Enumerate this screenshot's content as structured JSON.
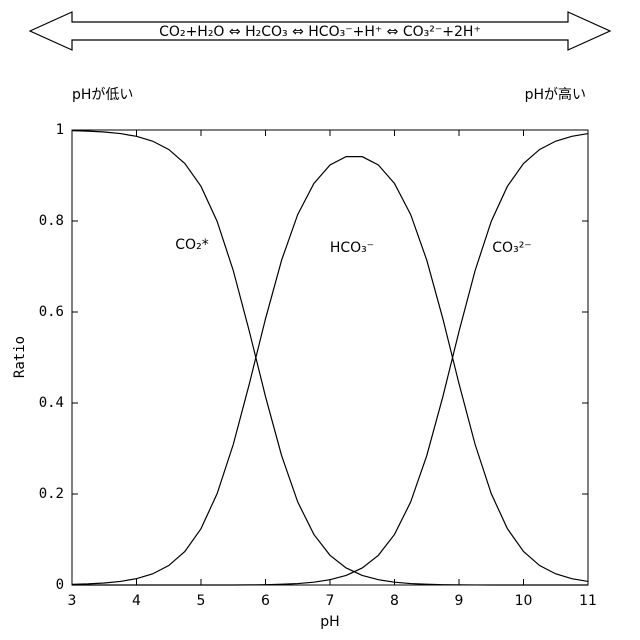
{
  "chart_data": {
    "type": "line",
    "equation": "CO₂+H₂O ⇔ H₂CO₃ ⇔ HCO₃⁻+H⁺ ⇔ CO₃²⁻+2H⁺",
    "left_note": "pHが低い",
    "right_note": "pHが高い",
    "xlabel": "pH",
    "ylabel": "Ratio",
    "x": [
      3,
      3.25,
      3.5,
      3.75,
      4,
      4.25,
      4.5,
      4.75,
      5,
      5.25,
      5.5,
      5.75,
      6,
      6.25,
      6.5,
      6.75,
      7,
      7.25,
      7.5,
      7.75,
      8,
      8.25,
      8.5,
      8.75,
      9,
      9.25,
      9.5,
      9.75,
      10,
      10.25,
      10.5,
      10.75,
      11
    ],
    "series": [
      {
        "name": "CO₂*",
        "color": "#000000",
        "values": [
          0.9986,
          0.9975,
          0.9956,
          0.9921,
          0.9861,
          0.9755,
          0.9572,
          0.9264,
          0.8762,
          0.7992,
          0.6912,
          0.5571,
          0.4142,
          0.2843,
          0.1823,
          0.1111,
          0.0653,
          0.0375,
          0.0211,
          0.0116,
          0.0062,
          0.0032,
          0.0016,
          0.0007,
          0.0003,
          0.0001,
          0,
          0,
          0,
          0,
          0,
          0,
          0
        ]
      },
      {
        "name": "HCO₃⁻",
        "color": "#000000",
        "values": [
          0.0014,
          0.0025,
          0.0044,
          0.0079,
          0.0139,
          0.0245,
          0.0428,
          0.0736,
          0.1238,
          0.2008,
          0.3088,
          0.4425,
          0.5851,
          0.7141,
          0.8144,
          0.8826,
          0.923,
          0.9415,
          0.9414,
          0.9231,
          0.8826,
          0.8144,
          0.7141,
          0.5851,
          0.4425,
          0.3088,
          0.2008,
          0.1238,
          0.0736,
          0.0428,
          0.0245,
          0.0139,
          0.0079
        ]
      },
      {
        "name": "CO₃²⁻",
        "color": "#000000",
        "values": [
          0,
          0,
          0,
          0,
          0,
          0,
          0,
          0,
          0,
          0,
          0,
          0.0003,
          0.0007,
          0.0016,
          0.0032,
          0.0062,
          0.0116,
          0.0211,
          0.0375,
          0.0653,
          0.1111,
          0.1823,
          0.2843,
          0.4142,
          0.5571,
          0.6912,
          0.7992,
          0.8762,
          0.9264,
          0.9572,
          0.9755,
          0.9861,
          0.9921
        ]
      }
    ],
    "xlim": [
      3,
      11
    ],
    "xticks": [
      3,
      4,
      5,
      6,
      7,
      8,
      9,
      10,
      11
    ],
    "ylim": [
      0,
      1
    ],
    "yticks": [
      0,
      0.2,
      0.4,
      0.6,
      0.8,
      1
    ]
  }
}
